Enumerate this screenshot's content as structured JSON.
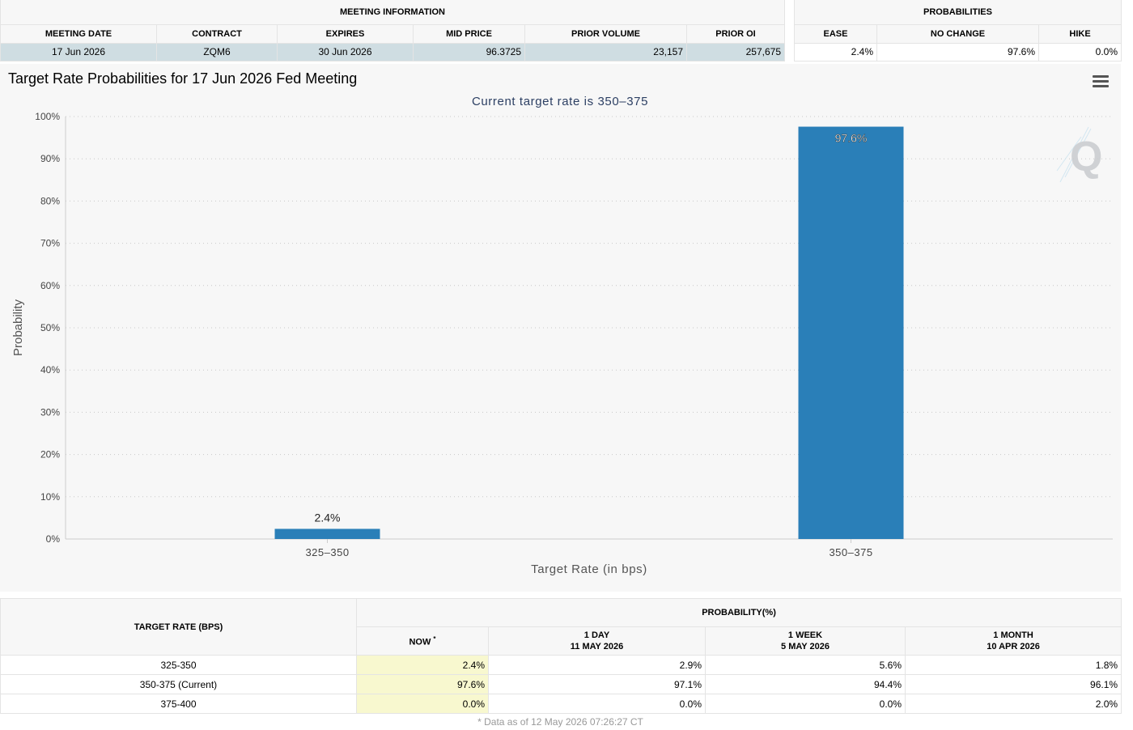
{
  "meeting_info": {
    "group_label": "MEETING INFORMATION",
    "headers": [
      "MEETING DATE",
      "CONTRACT",
      "EXPIRES",
      "MID PRICE",
      "PRIOR VOLUME",
      "PRIOR OI"
    ],
    "row": [
      "17 Jun 2026",
      "ZQM6",
      "30 Jun 2026",
      "96.3725",
      "23,157",
      "257,675"
    ]
  },
  "probabilities": {
    "group_label": "PROBABILITIES",
    "headers": [
      "EASE",
      "NO CHANGE",
      "HIKE"
    ],
    "row": [
      "2.4%",
      "97.6%",
      "0.0%"
    ]
  },
  "chart": {
    "title": "Target Rate Probabilities for 17 Jun 2026 Fed Meeting",
    "menu_icon": "hamburger-menu-icon",
    "watermark_icon": "quikstrike-q-logo"
  },
  "chart_data": {
    "type": "bar",
    "title": "Target Rate Probabilities for 17 Jun 2026 Fed Meeting",
    "subtitle": "Current target rate is 350–375",
    "categories": [
      "325–350",
      "350–375"
    ],
    "values": [
      2.4,
      97.6
    ],
    "value_labels": [
      "2.4%",
      "97.6%"
    ],
    "xlabel": "Target Rate (in bps)",
    "ylabel": "Probability",
    "ylim": [
      0,
      100
    ],
    "yticks": [
      0,
      10,
      20,
      30,
      40,
      50,
      60,
      70,
      80,
      90,
      100
    ],
    "ytick_labels": [
      "0%",
      "10%",
      "20%",
      "30%",
      "40%",
      "50%",
      "60%",
      "70%",
      "80%",
      "90%",
      "100%"
    ],
    "grid": true,
    "bar_color": "#2a7fb8"
  },
  "rate_table": {
    "target_header": "TARGET RATE (BPS)",
    "prob_header": "PROBABILITY(%)",
    "columns": [
      {
        "line1": "NOW",
        "line2": ""
      },
      {
        "line1": "1 DAY",
        "line2": "11 MAY 2026"
      },
      {
        "line1": "1 WEEK",
        "line2": "5 MAY 2026"
      },
      {
        "line1": "1 MONTH",
        "line2": "10 APR 2026"
      }
    ],
    "now_marker": "*",
    "rows": [
      {
        "rate": "325-350",
        "values": [
          "2.4%",
          "2.9%",
          "5.6%",
          "1.8%"
        ]
      },
      {
        "rate": "350-375 (Current)",
        "values": [
          "97.6%",
          "97.1%",
          "94.4%",
          "96.1%"
        ]
      },
      {
        "rate": "375-400",
        "values": [
          "0.0%",
          "0.0%",
          "0.0%",
          "2.0%"
        ]
      }
    ],
    "footnote": "* Data as of 12 May 2026 07:26:27 CT"
  },
  "colors": {
    "selected_row": "#cfdde2",
    "now_column": "#f8f8cf",
    "bar": "#2a7fb8"
  }
}
